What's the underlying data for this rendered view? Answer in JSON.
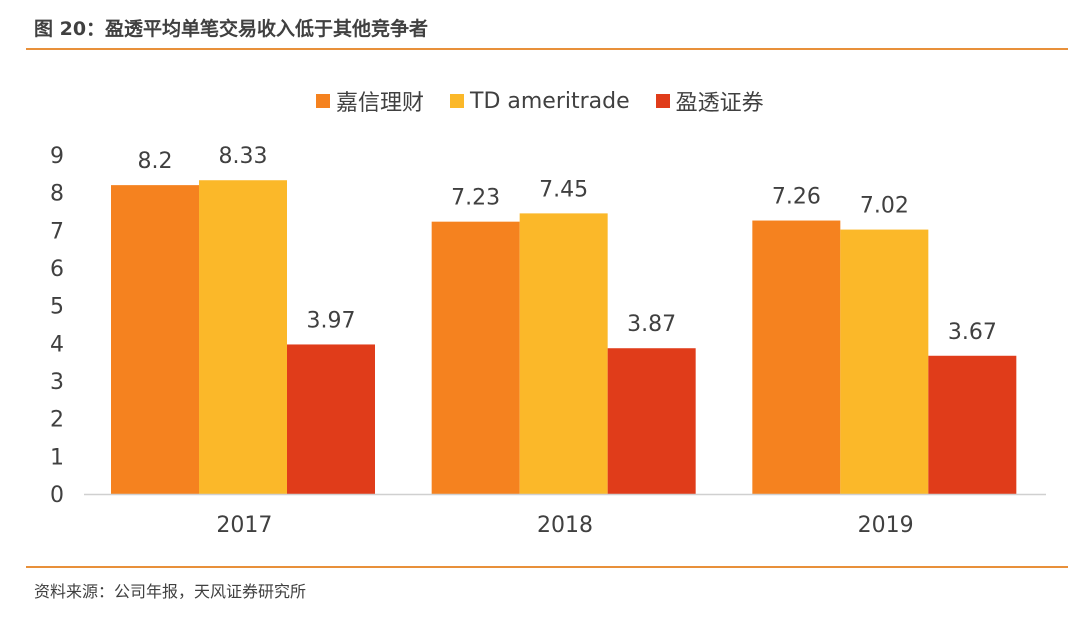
{
  "figure": {
    "title": "图 20：盈透平均单笔交易收入低于其他竞争者",
    "source": "资料来源：公司年报，天风证券研究所",
    "accent_color": "#e8903a"
  },
  "chart_data": {
    "type": "bar",
    "categories": [
      "2017",
      "2018",
      "2019"
    ],
    "series": [
      {
        "name": "嘉信理财",
        "color": "#f5821f",
        "values": [
          8.2,
          7.23,
          7.26
        ],
        "labels": [
          "8.2",
          "7.23",
          "7.26"
        ]
      },
      {
        "name": "TD ameritrade",
        "color": "#fbb829",
        "values": [
          8.33,
          7.45,
          7.02
        ],
        "labels": [
          "8.33",
          "7.45",
          "7.02"
        ]
      },
      {
        "name": "盈透证券",
        "color": "#e03c1a",
        "values": [
          3.97,
          3.87,
          3.67
        ],
        "labels": [
          "3.97",
          "3.87",
          "3.67"
        ]
      }
    ],
    "ylim": [
      0,
      9
    ],
    "yticks": [
      "0",
      "1",
      "2",
      "3",
      "4",
      "5",
      "6",
      "7",
      "8",
      "9"
    ],
    "grid": false,
    "legend_position": "top"
  }
}
